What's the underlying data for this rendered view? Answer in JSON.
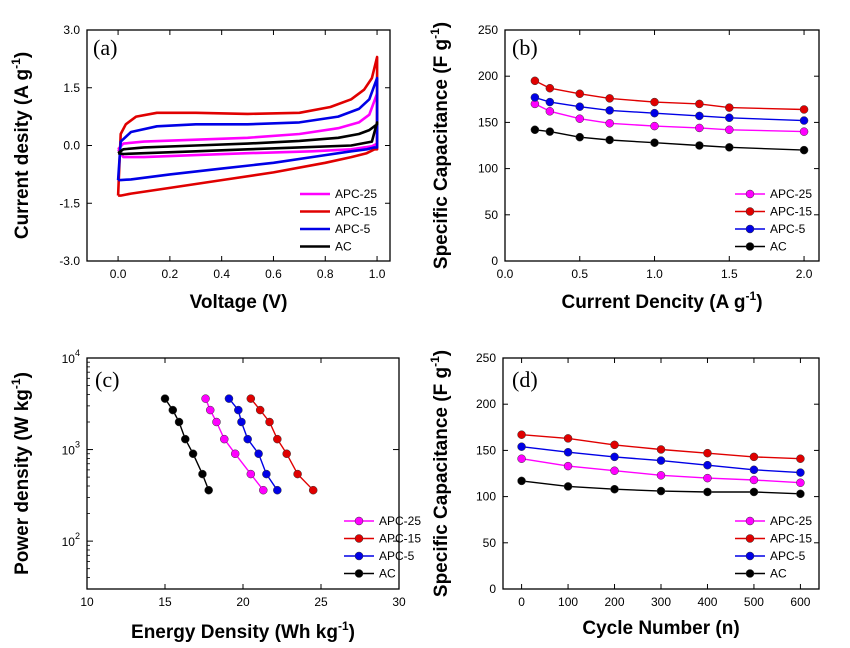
{
  "chart_data": [
    {
      "panel": "(a)",
      "type": "line",
      "subtype": "cyclic-voltammetry",
      "xlabel": "Voltage (V)",
      "ylabel": "Current desity (A g",
      "ylabel_sup": "-1",
      "ylabel_tail": ")",
      "xlim": [
        -0.12,
        1.05
      ],
      "ylim": [
        -3.0,
        3.0
      ],
      "xticks": [
        "0.0",
        "0.2",
        "0.4",
        "0.6",
        "0.8",
        "1.0"
      ],
      "yticks": [
        "-3.0",
        "-1.5",
        "0.0",
        "1.5",
        "3.0"
      ],
      "legend": [
        "APC-25",
        "APC-15",
        "APC-5",
        "AC"
      ],
      "series": [
        {
          "name": "APC-25",
          "color": "#ff00ff",
          "upper": {
            "x": [
              0,
              0.02,
              0.1,
              0.3,
              0.5,
              0.7,
              0.85,
              0.93,
              0.97,
              1.0
            ],
            "y": [
              -0.1,
              0.05,
              0.1,
              0.15,
              0.2,
              0.3,
              0.45,
              0.6,
              0.8,
              1.35
            ]
          },
          "lower": {
            "x": [
              1.0,
              0.98,
              0.9,
              0.75,
              0.5,
              0.3,
              0.1,
              0.02,
              0
            ],
            "y": [
              0.05,
              -0.02,
              -0.1,
              -0.15,
              -0.2,
              -0.25,
              -0.3,
              -0.3,
              -0.1
            ]
          }
        },
        {
          "name": "APC-15",
          "color": "#e00000",
          "upper": {
            "x": [
              0,
              0.01,
              0.03,
              0.07,
              0.15,
              0.3,
              0.5,
              0.7,
              0.82,
              0.9,
              0.95,
              0.98,
              1.0
            ],
            "y": [
              -1.3,
              0.3,
              0.55,
              0.75,
              0.85,
              0.85,
              0.82,
              0.85,
              1.0,
              1.2,
              1.45,
              1.75,
              2.3
            ]
          },
          "lower": {
            "x": [
              1.0,
              0.99,
              0.96,
              0.9,
              0.8,
              0.6,
              0.4,
              0.2,
              0.05,
              0.01,
              0
            ],
            "y": [
              -0.1,
              -0.1,
              -0.2,
              -0.3,
              -0.45,
              -0.7,
              -0.9,
              -1.1,
              -1.25,
              -1.3,
              -1.3
            ]
          }
        },
        {
          "name": "APC-5",
          "color": "#0000e6",
          "upper": {
            "x": [
              0,
              0.01,
              0.05,
              0.15,
              0.3,
              0.5,
              0.7,
              0.85,
              0.93,
              0.97,
              1.0
            ],
            "y": [
              -0.9,
              0.1,
              0.35,
              0.5,
              0.55,
              0.55,
              0.6,
              0.75,
              0.95,
              1.2,
              1.75
            ]
          },
          "lower": {
            "x": [
              1.0,
              0.99,
              0.96,
              0.9,
              0.8,
              0.6,
              0.4,
              0.2,
              0.05,
              0.01,
              0
            ],
            "y": [
              -0.05,
              -0.05,
              -0.1,
              -0.15,
              -0.25,
              -0.45,
              -0.6,
              -0.75,
              -0.88,
              -0.9,
              -0.9
            ]
          }
        },
        {
          "name": "AC",
          "color": "#000000",
          "upper": {
            "x": [
              0,
              0.02,
              0.1,
              0.3,
              0.5,
              0.7,
              0.85,
              0.93,
              0.97,
              1.0
            ],
            "y": [
              -0.2,
              -0.1,
              -0.05,
              0.0,
              0.05,
              0.12,
              0.2,
              0.3,
              0.4,
              0.55
            ]
          },
          "lower": {
            "x": [
              1.0,
              0.98,
              0.9,
              0.7,
              0.5,
              0.3,
              0.1,
              0.02,
              0
            ],
            "y": [
              0.6,
              0.1,
              0.0,
              -0.05,
              -0.1,
              -0.15,
              -0.2,
              -0.22,
              -0.2
            ]
          }
        }
      ]
    },
    {
      "panel": "(b)",
      "type": "line",
      "xlabel": "Current Dencity (A g",
      "xlabel_sup": "-1",
      "xlabel_tail": ")",
      "ylabel": "Specific Capacitance (F g",
      "ylabel_sup": "-1",
      "ylabel_tail": ")",
      "xlim": [
        0,
        2.1
      ],
      "ylim": [
        0,
        250
      ],
      "xticks": [
        "0.0",
        "0.5",
        "1.0",
        "1.5",
        "2.0"
      ],
      "yticks": [
        "0",
        "50",
        "100",
        "150",
        "200",
        "250"
      ],
      "legend": [
        "APC-25",
        "APC-15",
        "APC-5",
        "AC"
      ],
      "x": [
        0.2,
        0.3,
        0.5,
        0.7,
        1.0,
        1.3,
        1.5,
        2.0
      ],
      "series": [
        {
          "name": "APC-25",
          "color": "#ff00ff",
          "values": [
            170,
            162,
            154,
            149,
            146,
            144,
            142,
            140
          ]
        },
        {
          "name": "APC-15",
          "color": "#e00000",
          "values": [
            195,
            187,
            181,
            176,
            172,
            170,
            166,
            164
          ]
        },
        {
          "name": "APC-5",
          "color": "#0000e6",
          "values": [
            177,
            172,
            167,
            163,
            160,
            157,
            155,
            152
          ]
        },
        {
          "name": "AC",
          "color": "#000000",
          "values": [
            142,
            140,
            134,
            131,
            128,
            125,
            123,
            120
          ]
        }
      ]
    },
    {
      "panel": "(c)",
      "type": "line",
      "subtype": "ragone",
      "xlabel": "Energy Density (Wh kg",
      "xlabel_sup": "-1",
      "xlabel_tail": ")",
      "ylabel": "Power density (W kg",
      "ylabel_sup": "-1",
      "ylabel_tail": ")",
      "xlim": [
        10,
        30
      ],
      "ylim": [
        30,
        10000
      ],
      "yscale": "log",
      "xticks": [
        "10",
        "15",
        "20",
        "25",
        "30"
      ],
      "yticks": [
        {
          "base": "10",
          "exp": "2",
          "value": 100
        },
        {
          "base": "10",
          "exp": "3",
          "value": 1000
        },
        {
          "base": "10",
          "exp": "4",
          "value": 10000
        }
      ],
      "legend": [
        "APC-25",
        "APC-15",
        "APC-5",
        "AC"
      ],
      "series": [
        {
          "name": "APC-25",
          "color": "#ff00ff",
          "x": [
            17.6,
            17.9,
            18.3,
            18.8,
            19.5,
            20.5,
            21.3
          ],
          "y": [
            3600,
            2700,
            2000,
            1300,
            900,
            540,
            360
          ]
        },
        {
          "name": "APC-15",
          "color": "#e00000",
          "x": [
            20.5,
            21.1,
            21.7,
            22.2,
            22.8,
            23.5,
            24.5
          ],
          "y": [
            3600,
            2700,
            2000,
            1300,
            900,
            540,
            360
          ]
        },
        {
          "name": "APC-5",
          "color": "#0000e6",
          "x": [
            19.1,
            19.7,
            19.9,
            20.3,
            21.0,
            21.5,
            22.2
          ],
          "y": [
            3600,
            2700,
            2000,
            1300,
            900,
            540,
            360
          ]
        },
        {
          "name": "AC",
          "color": "#000000",
          "x": [
            15.0,
            15.5,
            15.9,
            16.3,
            16.8,
            17.4,
            17.8
          ],
          "y": [
            3600,
            2700,
            2000,
            1300,
            900,
            540,
            360
          ]
        }
      ]
    },
    {
      "panel": "(d)",
      "type": "line",
      "xlabel": "Cycle Number (n)",
      "ylabel": "Specific Capacitance (F g",
      "ylabel_sup": "-1",
      "ylabel_tail": ")",
      "xlim": [
        -40,
        640
      ],
      "ylim": [
        0,
        250
      ],
      "xticks": [
        "0",
        "100",
        "200",
        "300",
        "400",
        "500",
        "600"
      ],
      "yticks": [
        "0",
        "50",
        "100",
        "150",
        "200",
        "250"
      ],
      "legend": [
        "APC-25",
        "APC-15",
        "APC-5",
        "AC"
      ],
      "x": [
        0,
        100,
        200,
        300,
        400,
        500,
        600
      ],
      "series": [
        {
          "name": "APC-25",
          "color": "#ff00ff",
          "values": [
            141,
            133,
            128,
            123,
            120,
            118,
            115
          ]
        },
        {
          "name": "APC-15",
          "color": "#e00000",
          "values": [
            167,
            163,
            156,
            151,
            147,
            143,
            141
          ]
        },
        {
          "name": "APC-5",
          "color": "#0000e6",
          "values": [
            154,
            148,
            143,
            139,
            134,
            129,
            126
          ]
        },
        {
          "name": "AC",
          "color": "#000000",
          "values": [
            117,
            111,
            108,
            106,
            105,
            105,
            103
          ]
        }
      ]
    }
  ]
}
